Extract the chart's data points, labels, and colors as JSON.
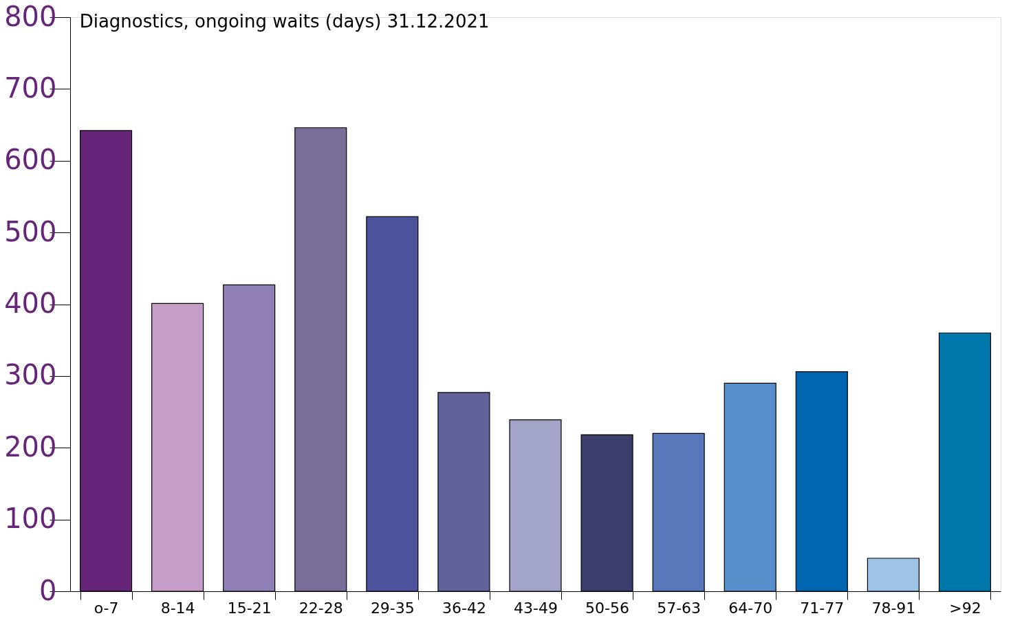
{
  "chart_data": {
    "type": "bar",
    "title": "Diagnostics, ongoing waits (days) 31.12.2021",
    "categories": [
      "o-7",
      "8-14",
      "15-21",
      "22-28",
      "29-35",
      "36-42",
      "43-49",
      "50-56",
      "57-63",
      "64-70",
      "71-77",
      "78-91",
      ">92"
    ],
    "values": [
      642,
      401,
      427,
      646,
      522,
      277,
      239,
      218,
      220,
      290,
      306,
      46,
      360
    ],
    "colors": [
      "#662579",
      "#c59fca",
      "#9180b6",
      "#7a6d9a",
      "#4c529c",
      "#61629b",
      "#a3a5c8",
      "#3c3e6b",
      "#5778bb",
      "#578ecc",
      "#0066b1",
      "#9dc3e7",
      "#0077aa"
    ],
    "ylim": [
      0,
      800
    ],
    "yticks": [
      0,
      100,
      200,
      300,
      400,
      500,
      600,
      700,
      800
    ],
    "grid": false
  }
}
